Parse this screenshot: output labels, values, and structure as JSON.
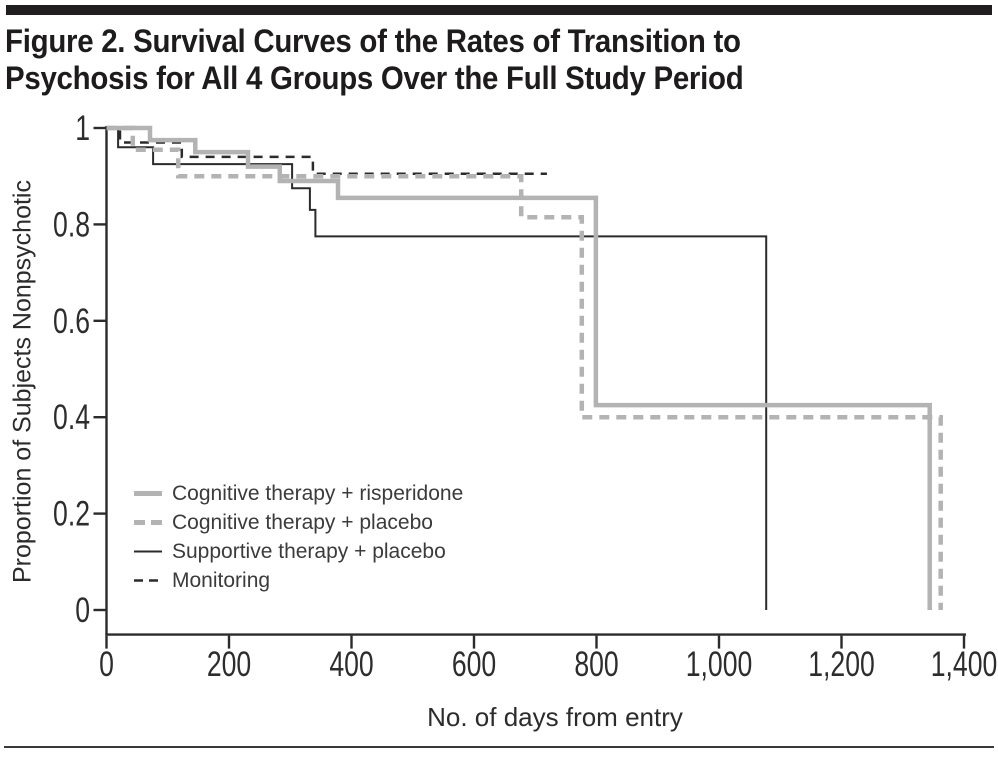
{
  "header": {
    "title_line1": "Figure 2. Survival Curves of the Rates of Transition to",
    "title_line2": "Psychosis for All 4 Groups Over the Full Study Period"
  },
  "chart_data": {
    "type": "line",
    "variant": "kaplan-meier-step-survival",
    "title": "Figure 2. Survival Curves of the Rates of Transition to Psychosis for All 4 Groups Over the Full Study Period",
    "xlabel": "No. of days from entry",
    "ylabel": "Proportion of Subjects Nonpsychotic",
    "xlim": [
      0,
      1400
    ],
    "ylim": [
      0,
      1
    ],
    "grid": false,
    "legend_position": "inside-lower-left",
    "x_ticks": [
      {
        "value": 0,
        "label": "0"
      },
      {
        "value": 200,
        "label": "200"
      },
      {
        "value": 400,
        "label": "400"
      },
      {
        "value": 600,
        "label": "600"
      },
      {
        "value": 800,
        "label": "800"
      },
      {
        "value": 1000,
        "label": "1,000"
      },
      {
        "value": 1200,
        "label": "1,200"
      },
      {
        "value": 1400,
        "label": "1,400"
      }
    ],
    "y_ticks": [
      {
        "value": 1,
        "label": "1"
      },
      {
        "value": 0.8,
        "label": "0.8"
      },
      {
        "value": 0.6,
        "label": "0.6"
      },
      {
        "value": 0.4,
        "label": "0.4"
      },
      {
        "value": 0.2,
        "label": "0.2"
      },
      {
        "value": 0,
        "label": "0"
      }
    ],
    "colors": {
      "gray_line": "#b3b3b3",
      "black_line": "#2b2b2b"
    },
    "series": [
      {
        "name": "Supportive therapy + placebo",
        "color": "#2b2b2b",
        "line_style": "solid",
        "line_width": 2,
        "steps": [
          [
            0,
            1
          ],
          [
            19,
            1
          ],
          [
            19,
            0.96
          ],
          [
            76,
            0.96
          ],
          [
            76,
            0.925
          ],
          [
            303,
            0.925
          ],
          [
            303,
            0.875
          ],
          [
            332,
            0.875
          ],
          [
            332,
            0.83
          ],
          [
            341,
            0.83
          ],
          [
            341,
            0.775
          ],
          [
            1077,
            0.775
          ],
          [
            1077,
            0
          ]
        ]
      },
      {
        "name": "Monitoring",
        "color": "#2b2b2b",
        "line_style": "dashed",
        "line_width": 2.5,
        "steps": [
          [
            0,
            1
          ],
          [
            22,
            1
          ],
          [
            22,
            0.97
          ],
          [
            123,
            0.97
          ],
          [
            123,
            0.94
          ],
          [
            337,
            0.94
          ],
          [
            337,
            0.905
          ],
          [
            719,
            0.905
          ]
        ]
      },
      {
        "name": "Cognitive therapy + placebo",
        "color": "#b3b3b3",
        "line_style": "dashed",
        "line_width": 4.5,
        "steps": [
          [
            0,
            1
          ],
          [
            43,
            1
          ],
          [
            43,
            0.955
          ],
          [
            117,
            0.955
          ],
          [
            117,
            0.9
          ],
          [
            677,
            0.9
          ],
          [
            677,
            0.815
          ],
          [
            776,
            0.815
          ],
          [
            776,
            0.4
          ],
          [
            1362,
            0.4
          ],
          [
            1362,
            0
          ]
        ]
      },
      {
        "name": "Cognitive therapy + risperidone",
        "color": "#b3b3b3",
        "line_style": "solid",
        "line_width": 4.5,
        "steps": [
          [
            0,
            1
          ],
          [
            71,
            1
          ],
          [
            71,
            0.975
          ],
          [
            145,
            0.975
          ],
          [
            145,
            0.95
          ],
          [
            231,
            0.95
          ],
          [
            231,
            0.92
          ],
          [
            283,
            0.92
          ],
          [
            283,
            0.89
          ],
          [
            378,
            0.89
          ],
          [
            378,
            0.855
          ],
          [
            799,
            0.855
          ],
          [
            799,
            0.425
          ],
          [
            1344,
            0.425
          ],
          [
            1344,
            0
          ]
        ]
      }
    ],
    "legend_order": [
      "Cognitive therapy + risperidone",
      "Cognitive therapy + placebo",
      "Supportive therapy + placebo",
      "Monitoring"
    ]
  }
}
